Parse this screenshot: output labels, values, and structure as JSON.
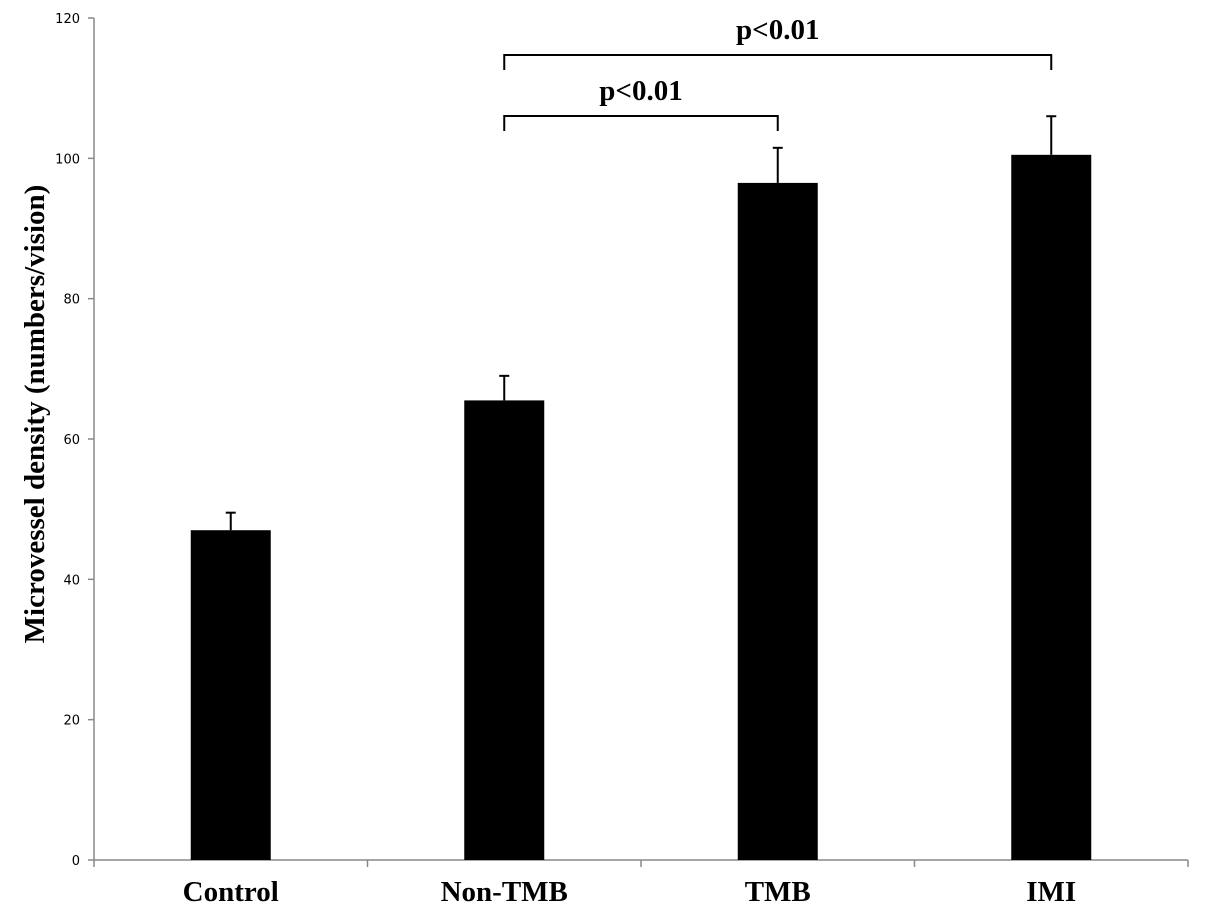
{
  "chart_data": {
    "type": "bar",
    "categories": [
      "Control",
      "Non-TMB",
      "TMB",
      "IMI"
    ],
    "values": [
      47,
      65.5,
      96.5,
      100.5
    ],
    "errors": [
      2.5,
      3.5,
      5,
      5.5
    ],
    "ylabel": "Microvessel density (numbers/vision)",
    "ylim": [
      0,
      120
    ],
    "yticks": [
      0,
      20,
      40,
      60,
      80,
      100,
      120
    ],
    "bar_color": "#000000",
    "grid": false,
    "significance": [
      {
        "from": "Non-TMB",
        "to": "TMB",
        "label": "p<0.01"
      },
      {
        "from": "Non-TMB",
        "to": "IMI",
        "label": "p<0.01"
      }
    ]
  }
}
